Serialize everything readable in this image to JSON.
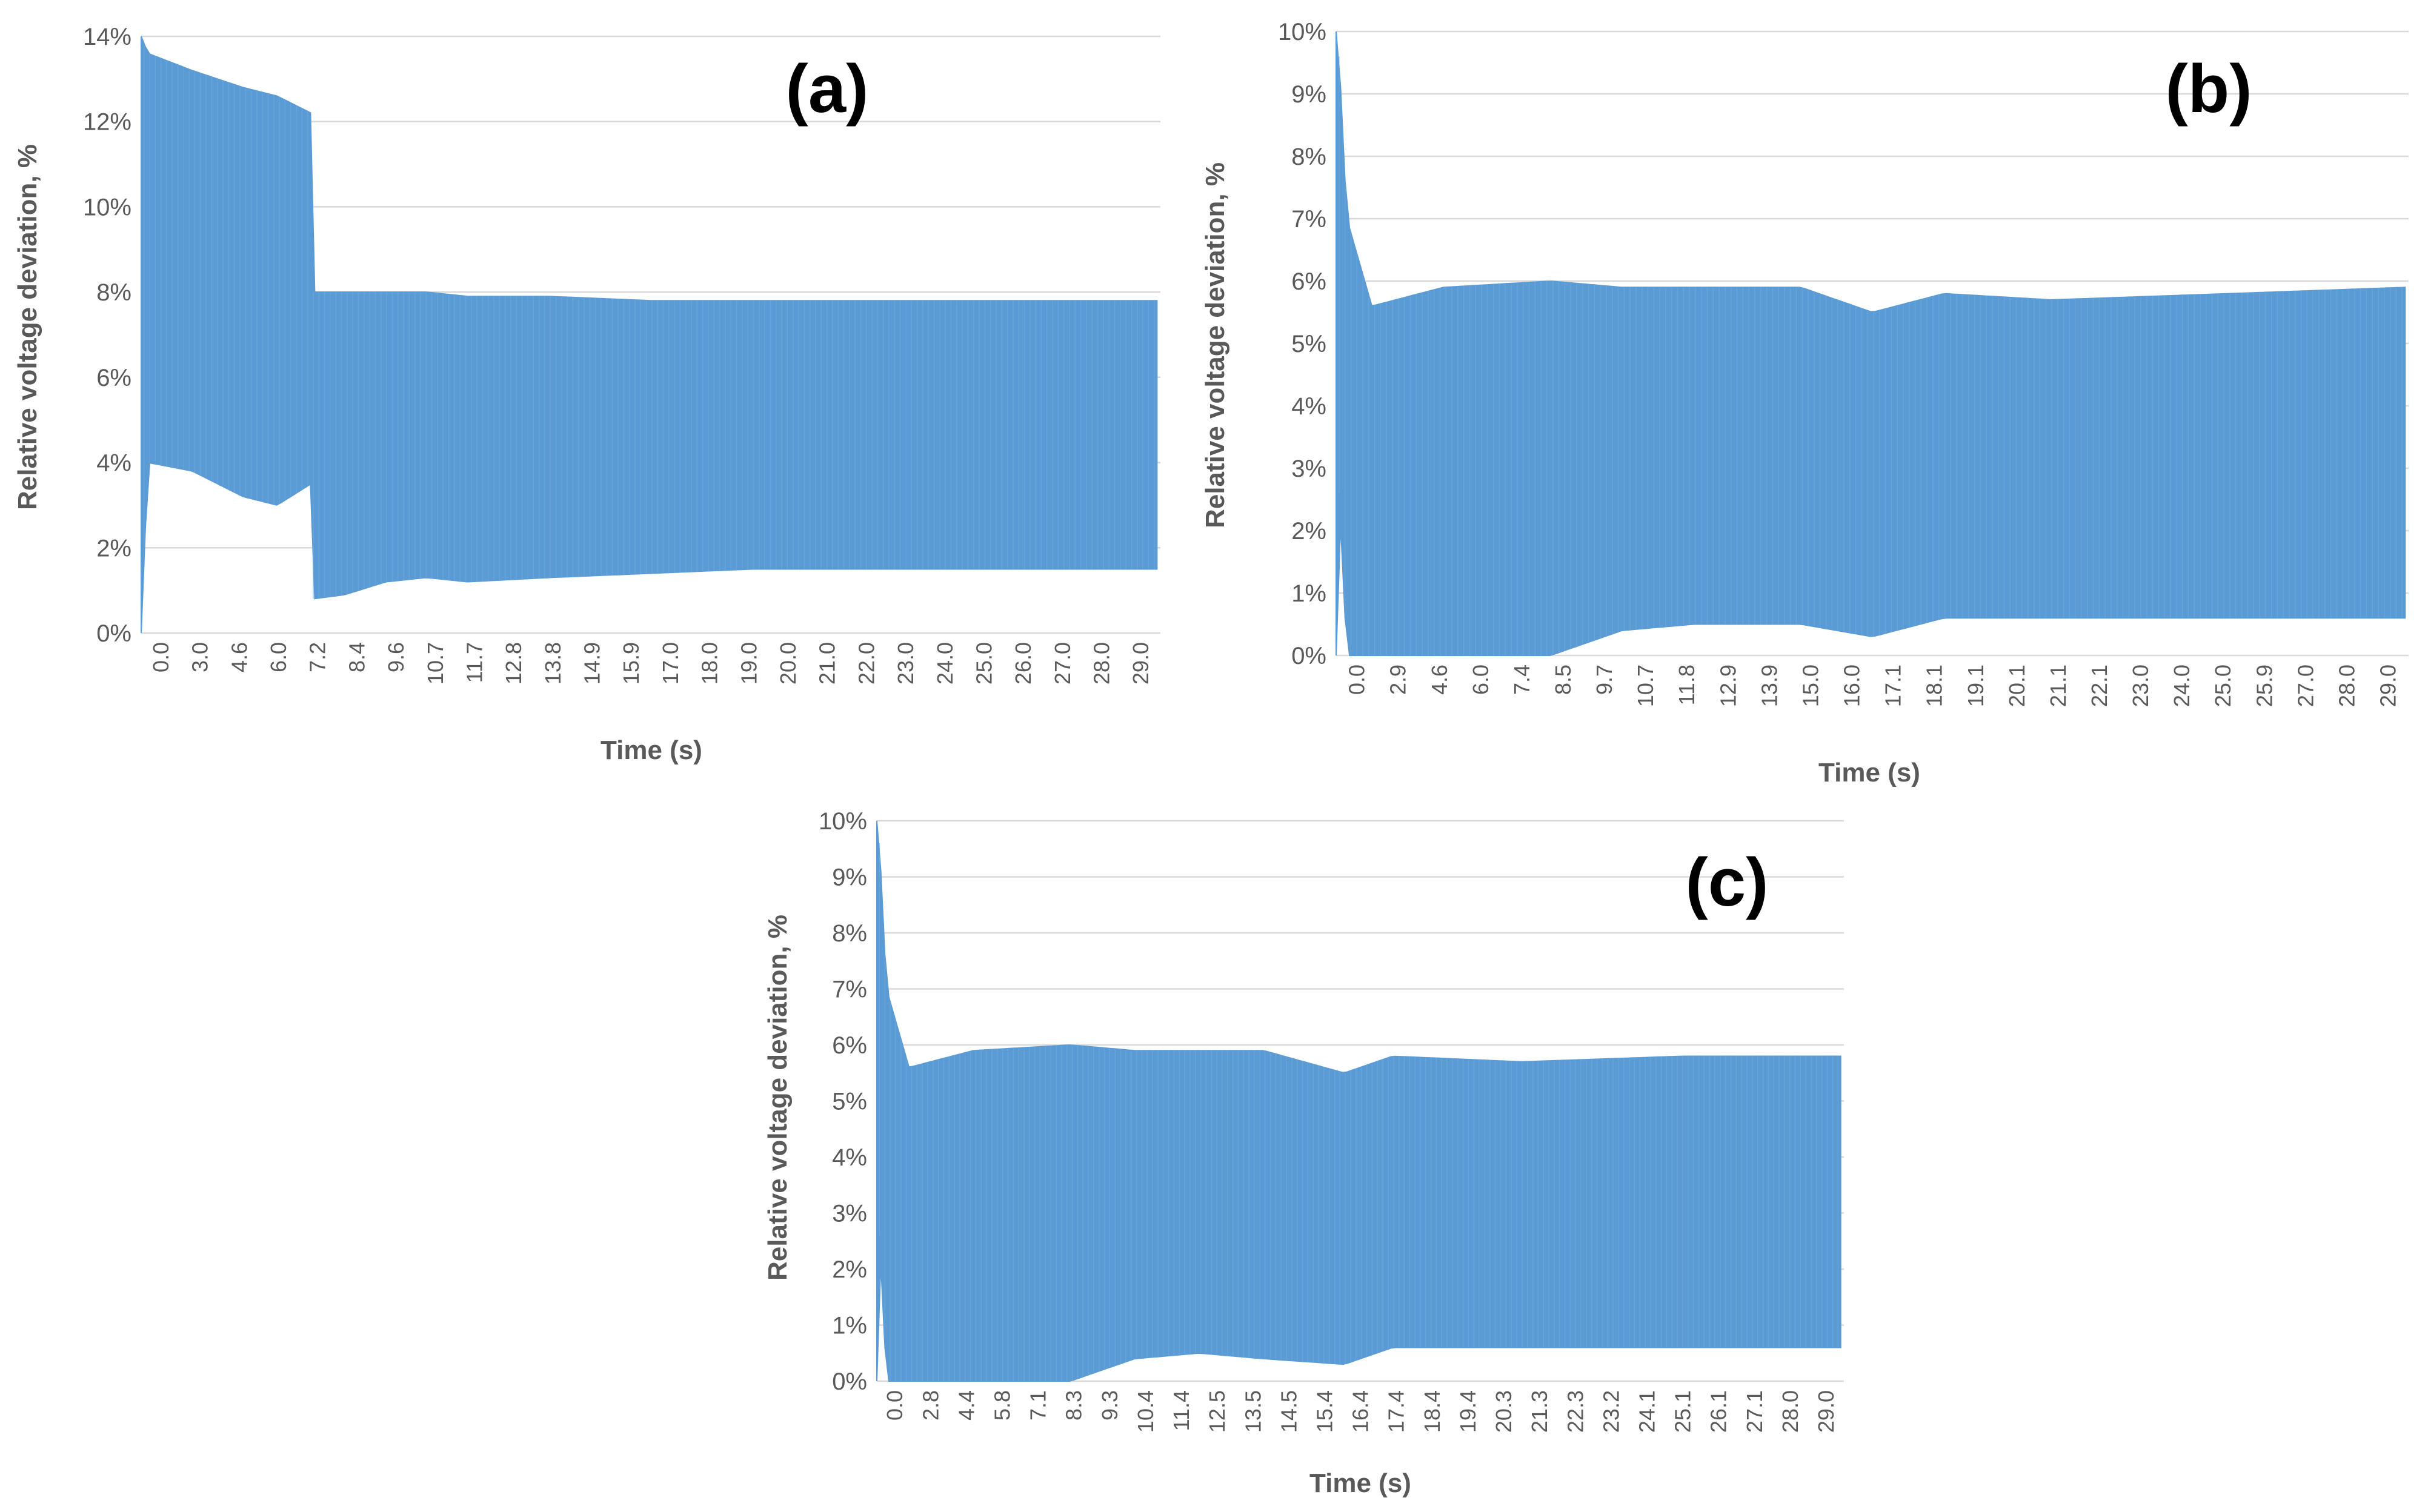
{
  "colors": {
    "series": "#5b9bd5",
    "grid": "#d9d9d9",
    "tick": "#595959",
    "label": "#000000"
  },
  "chart_data": [
    {
      "type": "line",
      "panel_label": "(a)",
      "xlabel": "Time (s)",
      "ylabel": "Relative voltage deviation, %",
      "xlim": [
        0,
        30
      ],
      "ylim": [
        0,
        14
      ],
      "yticks": [
        "0%",
        "2%",
        "4%",
        "6%",
        "8%",
        "10%",
        "12%",
        "14%"
      ],
      "xticks": [
        "0.0",
        "3.0",
        "4.6",
        "6.0",
        "7.2",
        "8.4",
        "9.6",
        "10.7",
        "11.7",
        "12.8",
        "13.8",
        "14.9",
        "15.9",
        "17.0",
        "18.0",
        "19.0",
        "20.0",
        "21.0",
        "22.0",
        "23.0",
        "24.0",
        "25.0",
        "26.0",
        "27.0",
        "28.0",
        "29.0"
      ],
      "grid": true,
      "legend": "none",
      "envelope": {
        "t": [
          0,
          0.2,
          1.5,
          3.0,
          4.0,
          5.0,
          5.05,
          6.0,
          7.2,
          8.4,
          9.6,
          12.0,
          15.0,
          18.0,
          21.0,
          25.0,
          29.9
        ],
        "upper": [
          14.0,
          13.6,
          13.2,
          12.8,
          12.6,
          12.2,
          8.0,
          8.0,
          8.0,
          8.0,
          7.9,
          7.9,
          7.8,
          7.8,
          7.8,
          7.8,
          7.8
        ],
        "lower": [
          0.0,
          4.0,
          3.8,
          3.2,
          3.0,
          3.5,
          0.8,
          0.9,
          1.2,
          1.3,
          1.2,
          1.3,
          1.4,
          1.5,
          1.5,
          1.5,
          1.5
        ]
      }
    },
    {
      "type": "line",
      "panel_label": "(b)",
      "xlabel": "Time (s)",
      "ylabel": "Relative voltage deviation, %",
      "xlim": [
        0,
        30
      ],
      "ylim": [
        0,
        10
      ],
      "yticks": [
        "0%",
        "1%",
        "2%",
        "3%",
        "4%",
        "5%",
        "6%",
        "7%",
        "8%",
        "9%",
        "10%"
      ],
      "xticks": [
        "0.0",
        "2.9",
        "4.6",
        "6.0",
        "7.4",
        "8.5",
        "9.7",
        "10.7",
        "11.8",
        "12.9",
        "13.9",
        "15.0",
        "16.0",
        "17.1",
        "18.1",
        "19.1",
        "20.1",
        "21.1",
        "22.1",
        "23.0",
        "24.0",
        "25.0",
        "25.9",
        "27.0",
        "28.0",
        "29.0"
      ],
      "grid": true,
      "legend": "none",
      "envelope": {
        "t": [
          0,
          0.05,
          0.3,
          1.0,
          3.0,
          6.0,
          8.0,
          10.0,
          13.0,
          15.0,
          17.0,
          20.0,
          25.0,
          29.9
        ],
        "upper": [
          10.0,
          10.0,
          7.0,
          5.6,
          5.9,
          6.0,
          5.9,
          5.9,
          5.9,
          5.5,
          5.8,
          5.7,
          5.8,
          5.9
        ],
        "lower": [
          0.0,
          3.0,
          0.0,
          0.0,
          0.0,
          0.0,
          0.4,
          0.5,
          0.5,
          0.3,
          0.6,
          0.6,
          0.6,
          0.6
        ]
      }
    },
    {
      "type": "line",
      "panel_label": "(c)",
      "xlabel": "Time (s)",
      "ylabel": "Relative voltage deviation, %",
      "xlim": [
        0,
        30
      ],
      "ylim": [
        0,
        10
      ],
      "yticks": [
        "0%",
        "1%",
        "2%",
        "3%",
        "4%",
        "5%",
        "6%",
        "7%",
        "8%",
        "9%",
        "10%"
      ],
      "xticks": [
        "0.0",
        "2.8",
        "4.4",
        "5.8",
        "7.1",
        "8.3",
        "9.3",
        "10.4",
        "11.4",
        "12.5",
        "13.5",
        "14.5",
        "15.4",
        "16.4",
        "17.4",
        "18.4",
        "19.4",
        "20.3",
        "21.3",
        "22.3",
        "23.2",
        "24.1",
        "25.1",
        "26.1",
        "27.1",
        "28.0",
        "29.0"
      ],
      "grid": true,
      "legend": "none",
      "envelope": {
        "t": [
          0,
          0.05,
          0.3,
          1.0,
          3.0,
          6.0,
          8.0,
          10.0,
          12.0,
          14.5,
          16.0,
          20.0,
          25.0,
          29.9
        ],
        "upper": [
          10.0,
          10.0,
          7.0,
          5.6,
          5.9,
          6.0,
          5.9,
          5.9,
          5.9,
          5.5,
          5.8,
          5.7,
          5.8,
          5.8
        ],
        "lower": [
          0.0,
          3.0,
          0.0,
          0.0,
          0.0,
          0.0,
          0.4,
          0.5,
          0.4,
          0.3,
          0.6,
          0.6,
          0.6,
          0.6
        ]
      }
    }
  ]
}
